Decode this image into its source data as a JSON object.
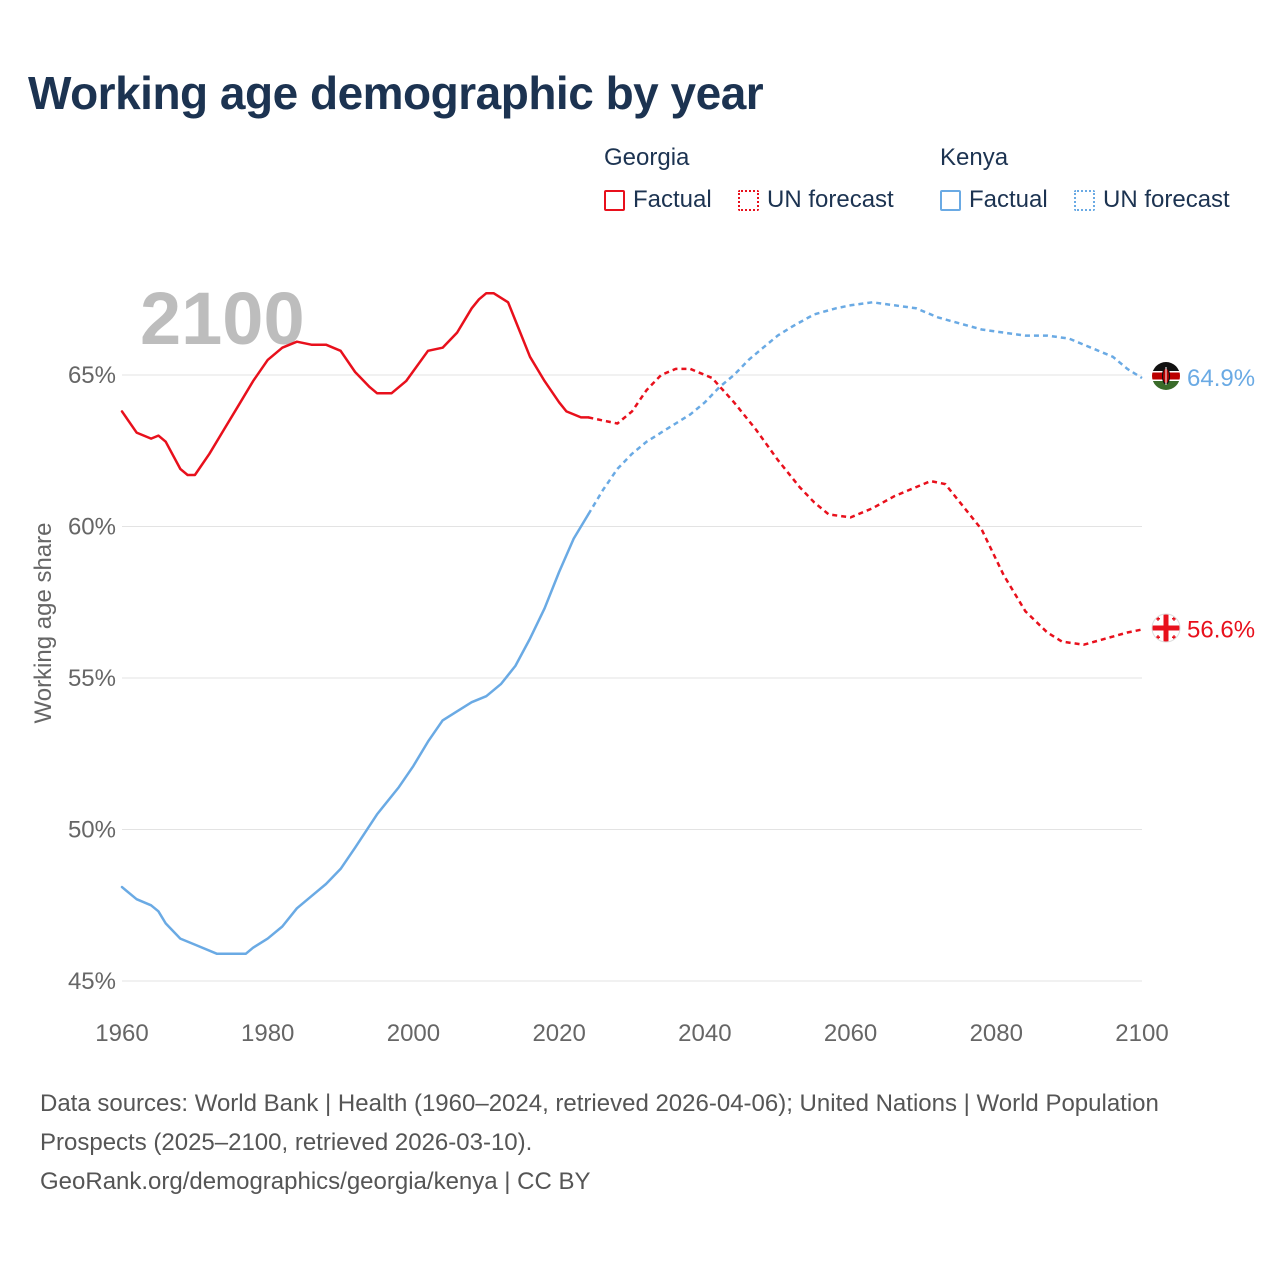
{
  "chart_data": {
    "type": "line",
    "title": "Working age demographic by year",
    "ylabel": "Working age share",
    "xlabel": "",
    "xlim": [
      1960,
      2100
    ],
    "ylim": [
      45,
      68
    ],
    "x_ticks": [
      "1960",
      "1980",
      "2000",
      "2020",
      "2040",
      "2060",
      "2080",
      "2100"
    ],
    "x_tick_values": [
      1960,
      1980,
      2000,
      2020,
      2040,
      2060,
      2080,
      2100
    ],
    "y_ticks": [
      "45%",
      "50%",
      "55%",
      "60%",
      "65%"
    ],
    "y_tick_values": [
      45,
      50,
      55,
      60,
      65
    ],
    "year_label": "2100",
    "factual_end_year": 2024,
    "series": [
      {
        "name": "Georgia",
        "color": "#e8101c",
        "end_label": "56.6%",
        "flag": "georgia-flag-icon",
        "points": [
          [
            1960,
            63.8
          ],
          [
            1962,
            63.1
          ],
          [
            1964,
            62.9
          ],
          [
            1965,
            63.0
          ],
          [
            1966,
            62.8
          ],
          [
            1968,
            61.9
          ],
          [
            1969,
            61.7
          ],
          [
            1970,
            61.7
          ],
          [
            1972,
            62.4
          ],
          [
            1974,
            63.2
          ],
          [
            1976,
            64.0
          ],
          [
            1978,
            64.8
          ],
          [
            1980,
            65.5
          ],
          [
            1982,
            65.9
          ],
          [
            1984,
            66.1
          ],
          [
            1986,
            66.0
          ],
          [
            1988,
            66.0
          ],
          [
            1990,
            65.8
          ],
          [
            1992,
            65.1
          ],
          [
            1994,
            64.6
          ],
          [
            1995,
            64.4
          ],
          [
            1997,
            64.4
          ],
          [
            1999,
            64.8
          ],
          [
            2002,
            65.8
          ],
          [
            2004,
            65.9
          ],
          [
            2006,
            66.4
          ],
          [
            2008,
            67.2
          ],
          [
            2009,
            67.5
          ],
          [
            2010,
            67.7
          ],
          [
            2011,
            67.7
          ],
          [
            2013,
            67.4
          ],
          [
            2014,
            66.8
          ],
          [
            2016,
            65.6
          ],
          [
            2018,
            64.8
          ],
          [
            2020,
            64.1
          ],
          [
            2021,
            63.8
          ],
          [
            2023,
            63.6
          ],
          [
            2024,
            63.6
          ],
          [
            2026,
            63.5
          ],
          [
            2028,
            63.4
          ],
          [
            2030,
            63.8
          ],
          [
            2032,
            64.5
          ],
          [
            2034,
            65.0
          ],
          [
            2036,
            65.2
          ],
          [
            2038,
            65.2
          ],
          [
            2041,
            64.9
          ],
          [
            2044,
            64.1
          ],
          [
            2047,
            63.2
          ],
          [
            2050,
            62.2
          ],
          [
            2053,
            61.3
          ],
          [
            2055,
            60.8
          ],
          [
            2057,
            60.4
          ],
          [
            2060,
            60.3
          ],
          [
            2063,
            60.6
          ],
          [
            2066,
            61.0
          ],
          [
            2069,
            61.3
          ],
          [
            2071,
            61.5
          ],
          [
            2073,
            61.4
          ],
          [
            2075,
            60.8
          ],
          [
            2078,
            59.9
          ],
          [
            2081,
            58.4
          ],
          [
            2084,
            57.2
          ],
          [
            2087,
            56.5
          ],
          [
            2089,
            56.2
          ],
          [
            2092,
            56.1
          ],
          [
            2095,
            56.3
          ],
          [
            2098,
            56.5
          ],
          [
            2100,
            56.6
          ]
        ]
      },
      {
        "name": "Kenya",
        "color": "#6aaae4",
        "end_label": "64.9%",
        "flag": "kenya-flag-icon",
        "points": [
          [
            1960,
            48.1
          ],
          [
            1962,
            47.7
          ],
          [
            1964,
            47.5
          ],
          [
            1965,
            47.3
          ],
          [
            1966,
            46.9
          ],
          [
            1968,
            46.4
          ],
          [
            1970,
            46.2
          ],
          [
            1973,
            45.9
          ],
          [
            1977,
            45.9
          ],
          [
            1978,
            46.1
          ],
          [
            1980,
            46.4
          ],
          [
            1982,
            46.8
          ],
          [
            1984,
            47.4
          ],
          [
            1986,
            47.8
          ],
          [
            1988,
            48.2
          ],
          [
            1990,
            48.7
          ],
          [
            1992,
            49.4
          ],
          [
            1995,
            50.5
          ],
          [
            1998,
            51.4
          ],
          [
            2000,
            52.1
          ],
          [
            2002,
            52.9
          ],
          [
            2004,
            53.6
          ],
          [
            2006,
            53.9
          ],
          [
            2008,
            54.2
          ],
          [
            2010,
            54.4
          ],
          [
            2012,
            54.8
          ],
          [
            2014,
            55.4
          ],
          [
            2016,
            56.3
          ],
          [
            2018,
            57.3
          ],
          [
            2020,
            58.5
          ],
          [
            2022,
            59.6
          ],
          [
            2024,
            60.4
          ],
          [
            2026,
            61.2
          ],
          [
            2028,
            61.9
          ],
          [
            2030,
            62.4
          ],
          [
            2032,
            62.8
          ],
          [
            2034,
            63.1
          ],
          [
            2036,
            63.4
          ],
          [
            2038,
            63.7
          ],
          [
            2040,
            64.1
          ],
          [
            2042,
            64.6
          ],
          [
            2044,
            65.0
          ],
          [
            2046,
            65.5
          ],
          [
            2048,
            65.9
          ],
          [
            2050,
            66.3
          ],
          [
            2052,
            66.6
          ],
          [
            2055,
            67.0
          ],
          [
            2058,
            67.2
          ],
          [
            2060,
            67.3
          ],
          [
            2063,
            67.4
          ],
          [
            2066,
            67.3
          ],
          [
            2069,
            67.2
          ],
          [
            2072,
            66.9
          ],
          [
            2075,
            66.7
          ],
          [
            2078,
            66.5
          ],
          [
            2081,
            66.4
          ],
          [
            2084,
            66.3
          ],
          [
            2087,
            66.3
          ],
          [
            2090,
            66.2
          ],
          [
            2093,
            65.9
          ],
          [
            2096,
            65.6
          ],
          [
            2098,
            65.2
          ],
          [
            2100,
            64.9
          ]
        ]
      }
    ]
  },
  "legend": {
    "groups": [
      {
        "heading": "Georgia",
        "factual_label": "Factual",
        "forecast_label": "UN forecast",
        "color": "#e8101c"
      },
      {
        "heading": "Kenya",
        "factual_label": "Factual",
        "forecast_label": "UN forecast",
        "color": "#6aaae4"
      }
    ]
  },
  "footer": {
    "sources": "Data sources: World Bank | Health (1960–2024, retrieved 2026-04-06); United Nations | World Population Prospects (2025–2100, retrieved 2026-03-10).",
    "credit": "GeoRank.org/demographics/georgia/kenya | CC BY"
  }
}
